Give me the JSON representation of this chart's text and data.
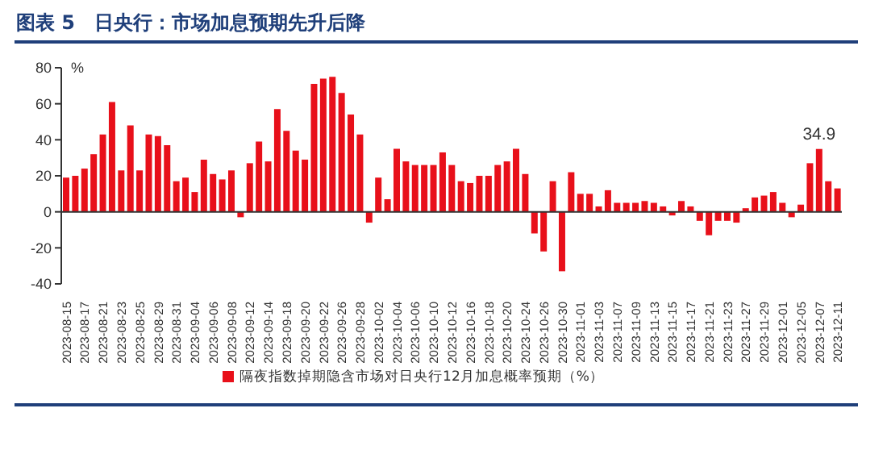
{
  "chart_data": {
    "type": "bar",
    "title": "图表 5　日央行：市场加息预期先升后降",
    "ylabel": "%",
    "categories": [
      "2023-08-15",
      null,
      "2023-08-17",
      null,
      "2023-08-21",
      null,
      "2023-08-23",
      null,
      "2023-08-25",
      null,
      "2023-08-29",
      null,
      "2023-08-31",
      null,
      "2023-09-04",
      null,
      "2023-09-06",
      null,
      "2023-09-08",
      null,
      "2023-09-12",
      null,
      "2023-09-14",
      null,
      "2023-09-18",
      null,
      "2023-09-20",
      null,
      "2023-09-22",
      null,
      "2023-09-26",
      null,
      "2023-09-28",
      null,
      "2023-10-02",
      null,
      "2023-10-04",
      null,
      "2023-10-06",
      null,
      "2023-10-10",
      null,
      "2023-10-12",
      null,
      "2023-10-16",
      null,
      "2023-10-18",
      null,
      "2023-10-20",
      null,
      "2023-10-24",
      null,
      "2023-10-26",
      null,
      "2023-10-30",
      null,
      "2023-11-01",
      null,
      "2023-11-03",
      null,
      "2023-11-07",
      null,
      "2023-11-09",
      null,
      "2023-11-13",
      null,
      "2023-11-15",
      null,
      "2023-11-17",
      null,
      "2023-11-21",
      null,
      "2023-11-23",
      null,
      "2023-11-27",
      null,
      "2023-11-29",
      null,
      "2023-12-01",
      null,
      "2023-12-05",
      null,
      "2023-12-07",
      null,
      "2023-12-11"
    ],
    "series": [
      {
        "name": "隔夜指数掉期隐含市场对日央行12月加息概率预期（%）",
        "color": "#e8101a",
        "values": [
          19,
          20,
          24,
          32,
          43,
          61,
          23,
          48,
          23,
          43,
          42,
          37,
          17,
          19,
          11,
          29,
          21,
          18,
          23,
          -3,
          27,
          39,
          28,
          57,
          45,
          34,
          29,
          71,
          74,
          75,
          66,
          54,
          43,
          -6,
          19,
          7,
          35,
          28,
          26,
          26,
          26,
          33,
          26,
          17,
          16,
          20,
          20,
          26,
          28,
          35,
          21,
          -12,
          -22,
          17,
          -33,
          22,
          10,
          10,
          3,
          12,
          5,
          5,
          5,
          6,
          5,
          3,
          -2,
          6,
          3,
          -5,
          -13,
          -5,
          -5,
          -6,
          2,
          8,
          9,
          11,
          5,
          -3,
          4,
          27,
          34.9,
          17,
          13
        ],
        "value_labels": [
          null,
          null,
          null,
          null,
          null,
          null,
          null,
          null,
          null,
          null,
          null,
          null,
          null,
          null,
          null,
          null,
          null,
          null,
          null,
          null,
          null,
          null,
          null,
          null,
          null,
          null,
          null,
          null,
          null,
          null,
          null,
          null,
          null,
          null,
          null,
          null,
          null,
          null,
          null,
          null,
          null,
          null,
          null,
          null,
          null,
          null,
          null,
          null,
          null,
          null,
          null,
          null,
          null,
          null,
          null,
          null,
          null,
          null,
          null,
          null,
          null,
          null,
          null,
          null,
          null,
          null,
          null,
          null,
          null,
          null,
          null,
          null,
          null,
          null,
          null,
          null,
          null,
          null,
          null,
          null,
          null,
          null,
          "34.9",
          null,
          null
        ]
      }
    ],
    "ylim": [
      -40,
      80
    ],
    "yticks": [
      -40,
      -20,
      0,
      20,
      40,
      60,
      80
    ],
    "legend": "bottom"
  }
}
